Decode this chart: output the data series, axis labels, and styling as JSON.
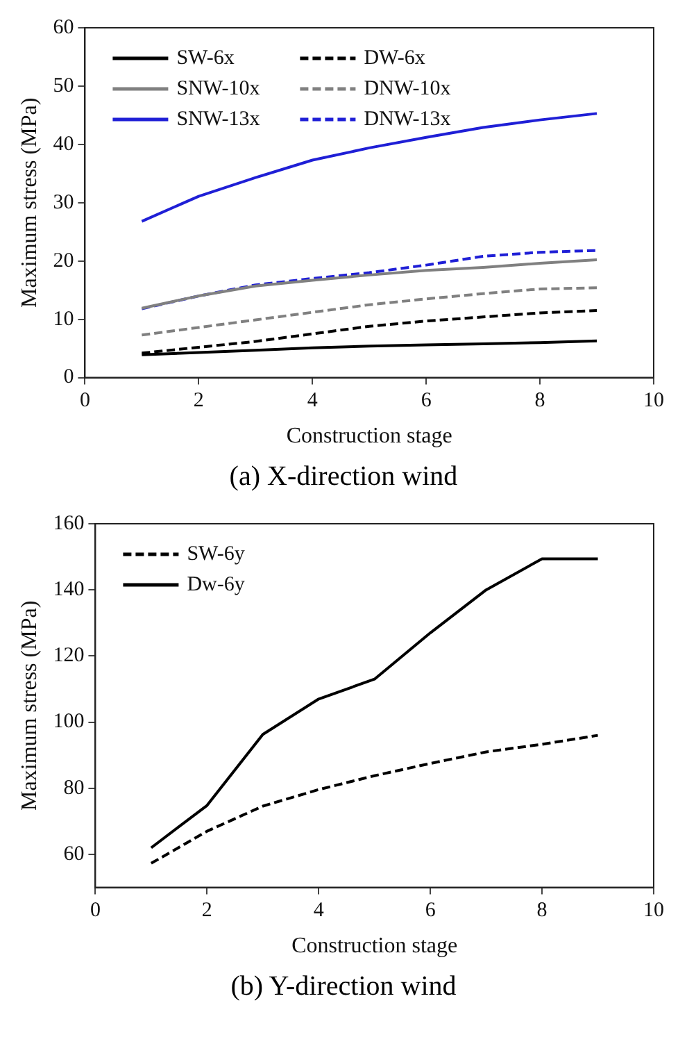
{
  "chart_data": [
    {
      "type": "line",
      "xlabel": "Construction stage",
      "ylabel": "Maximum stress (MPa)",
      "annotations": [
        "(a) X-direction wind"
      ],
      "x": [
        1,
        2,
        3,
        4,
        5,
        6,
        7,
        8,
        9
      ],
      "xlim": [
        0,
        10
      ],
      "xticks": [
        0,
        2,
        4,
        6,
        8,
        10
      ],
      "ylim": [
        0,
        60
      ],
      "yticks": [
        0,
        10,
        20,
        30,
        40,
        50,
        60
      ],
      "grid": false,
      "legend": "top left",
      "marker": "none",
      "series": [
        {
          "name": "SW-6x",
          "color": "#000000",
          "line_style": "solid",
          "values": [
            3.9,
            4.3,
            4.7,
            5.1,
            5.4,
            5.6,
            5.8,
            6.0,
            6.3
          ]
        },
        {
          "name": "DW-6x",
          "color": "#000000",
          "line_style": "dashed",
          "values": [
            4.2,
            5.2,
            6.2,
            7.5,
            8.8,
            9.7,
            10.4,
            11.1,
            11.5
          ]
        },
        {
          "name": "SNW-10x",
          "color": "#808080",
          "line_style": "solid",
          "values": [
            11.9,
            14.0,
            15.7,
            16.7,
            17.6,
            18.4,
            18.9,
            19.6,
            20.2
          ]
        },
        {
          "name": "DNW-10x",
          "color": "#808080",
          "line_style": "dashed",
          "values": [
            7.3,
            8.6,
            9.9,
            11.2,
            12.5,
            13.5,
            14.4,
            15.2,
            15.4
          ]
        },
        {
          "name": "SNW-13x",
          "color": "#1f1fd6",
          "line_style": "solid",
          "values": [
            26.8,
            31.1,
            34.3,
            37.3,
            39.4,
            41.2,
            42.9,
            44.2,
            45.3
          ]
        },
        {
          "name": "DNW-13x",
          "color": "#1f1fd6",
          "line_style": "dashed",
          "values": [
            11.8,
            14.0,
            15.9,
            17.0,
            18.0,
            19.3,
            20.8,
            21.5,
            21.8
          ]
        }
      ]
    },
    {
      "type": "line",
      "xlabel": "Construction stage",
      "ylabel": "Maximum stress (MPa)",
      "annotations": [
        "(b) Y-direction wind"
      ],
      "x": [
        1,
        2,
        3,
        4,
        5,
        6,
        7,
        8,
        9
      ],
      "xlim": [
        0,
        10
      ],
      "xticks": [
        0,
        2,
        4,
        6,
        8,
        10
      ],
      "ylim": [
        50,
        160
      ],
      "yticks": [
        60,
        80,
        100,
        120,
        140,
        160
      ],
      "grid": false,
      "legend": "top left",
      "marker": "none",
      "series": [
        {
          "name": "SW-6y",
          "color": "#000000",
          "line_style": "dashed",
          "values": [
            57.3,
            67,
            74.6,
            79.6,
            83.8,
            87.5,
            91,
            93.3,
            96
          ]
        },
        {
          "name": "Dw-6y",
          "color": "#000000",
          "line_style": "solid",
          "values": [
            62,
            74.8,
            96.3,
            107,
            113,
            127,
            140,
            149.4,
            149.4
          ]
        }
      ]
    }
  ]
}
